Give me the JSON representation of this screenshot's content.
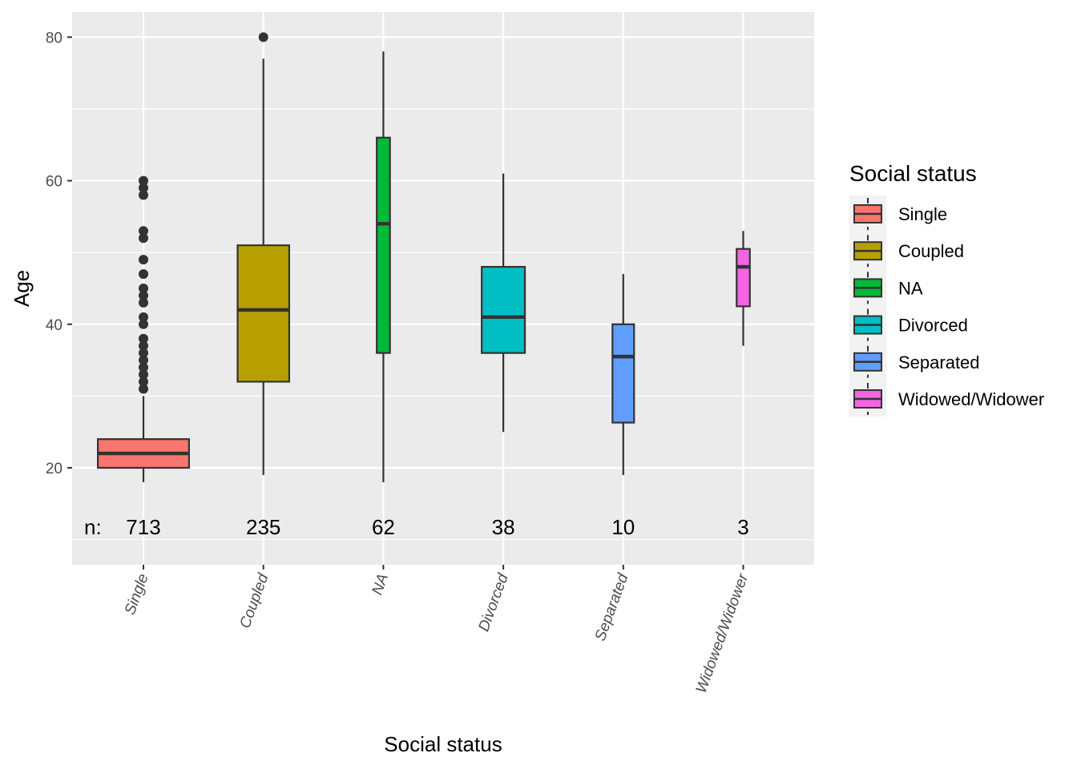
{
  "chart_data": {
    "type": "boxplot",
    "xlabel": "Social status",
    "ylabel": "Age",
    "ylim": [
      6.5,
      83.5
    ],
    "yticks": [
      20,
      40,
      60,
      80
    ],
    "grid": true,
    "count_prefix": "n:",
    "legend": {
      "title": "Social status",
      "position": "right"
    },
    "series": [
      {
        "name": "Single",
        "color": "#F8766D",
        "count": "713",
        "width": 0.76,
        "whisker_low": 18,
        "q1": 20,
        "median": 22,
        "q3": 24,
        "whisker_high": 30,
        "outliers": [
          31,
          32,
          33,
          34,
          35,
          36,
          37,
          38,
          40,
          41,
          43,
          44,
          45,
          47,
          49,
          52,
          53,
          58,
          59,
          60
        ]
      },
      {
        "name": "Coupled",
        "color": "#B79F00",
        "count": "235",
        "width": 0.43,
        "whisker_low": 19,
        "q1": 32,
        "median": 42,
        "q3": 51,
        "whisker_high": 77,
        "outliers": [
          80
        ]
      },
      {
        "name": "NA",
        "color": "#00BA38",
        "count": "62",
        "width": 0.11,
        "whisker_low": 18,
        "q1": 36,
        "median": 54,
        "q3": 66,
        "whisker_high": 78,
        "outliers": []
      },
      {
        "name": "Divorced",
        "color": "#00BFC4",
        "count": "38",
        "width": 0.36,
        "whisker_low": 25,
        "q1": 36,
        "median": 41,
        "q3": 48,
        "whisker_high": 61,
        "outliers": []
      },
      {
        "name": "Separated",
        "color": "#619CFF",
        "count": "10",
        "width": 0.18,
        "whisker_low": 19,
        "q1": 26.3,
        "median": 35.5,
        "q3": 40,
        "whisker_high": 47,
        "outliers": []
      },
      {
        "name": "Widowed/Widower",
        "color": "#F564E3",
        "count": "3",
        "width": 0.11,
        "whisker_low": 37,
        "q1": 42.5,
        "median": 48,
        "q3": 50.5,
        "whisker_high": 53,
        "outliers": []
      }
    ]
  }
}
